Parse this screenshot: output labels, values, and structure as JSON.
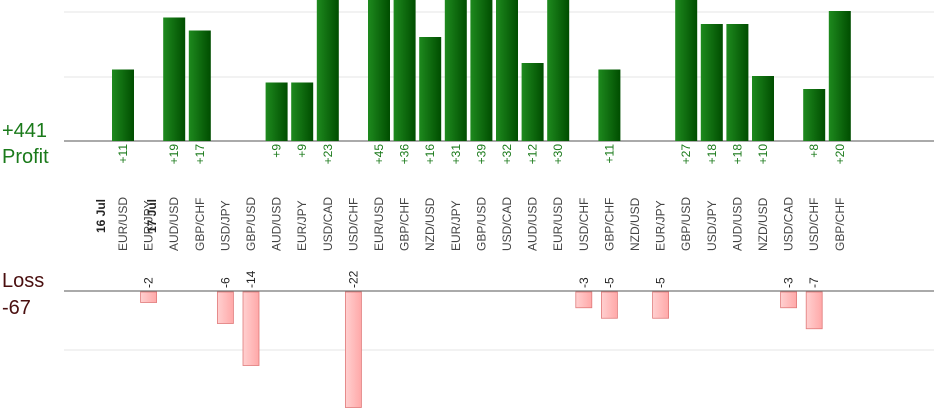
{
  "chart_data": {
    "type": "bar",
    "summary": {
      "profit_label": "Profit",
      "profit_total": "+441",
      "loss_label": "Loss",
      "loss_total": "-67"
    },
    "dates": [
      {
        "label": "16 Jul",
        "before_index": 0
      },
      {
        "label": "17 Jul",
        "before_index": 2
      }
    ],
    "categories": [
      "EUR/USD",
      "EUR/JPY",
      "AUD/USD",
      "GBP/CHF",
      "USD/JPY",
      "GBP/USD",
      "AUD/USD",
      "EUR/JPY",
      "USD/CAD",
      "USD/CHF",
      "EUR/USD",
      "GBP/CHF",
      "NZD/USD",
      "EUR/JPY",
      "GBP/USD",
      "USD/CAD",
      "AUD/USD",
      "EUR/USD",
      "USD/CHF",
      "GBP/CHF",
      "NZD/USD",
      "EUR/JPY",
      "GBP/USD",
      "USD/JPY",
      "AUD/USD",
      "NZD/USD",
      "USD/CAD",
      "USD/CHF",
      "GBP/CHF"
    ],
    "profit": [
      11,
      0,
      19,
      17,
      0,
      0,
      9,
      9,
      23,
      0,
      45,
      36,
      16,
      31,
      39,
      32,
      12,
      30,
      0,
      11,
      0,
      0,
      27,
      18,
      18,
      10,
      0,
      8,
      20
    ],
    "loss": [
      0,
      -2,
      0,
      0,
      -6,
      -14,
      0,
      0,
      0,
      -22,
      0,
      0,
      0,
      0,
      0,
      0,
      0,
      0,
      -3,
      -5,
      0,
      -5,
      0,
      0,
      0,
      0,
      -3,
      -7,
      0
    ],
    "profit_labels": [
      "+11",
      "",
      "+19",
      "+17",
      "",
      "",
      "+9",
      "+9",
      "+23",
      "",
      "+45",
      "+36",
      "+16",
      "+31",
      "+39",
      "+32",
      "+12",
      "+30",
      "",
      "+11",
      "",
      "",
      "+27",
      "+18",
      "+18",
      "+10",
      "",
      "+8",
      "+20"
    ],
    "loss_labels": [
      "",
      "-2",
      "",
      "",
      "-6",
      "-14",
      "",
      "",
      "",
      "-22",
      "",
      "",
      "",
      "",
      "",
      "",
      "",
      "",
      "-3",
      "-5",
      "",
      "-5",
      "",
      "",
      "",
      "",
      "-3",
      "-7",
      ""
    ],
    "profit_ylim": [
      0,
      22
    ],
    "loss_ylim": [
      -20,
      0
    ],
    "grid": true,
    "colors": {
      "profit_bar_light": "#1e8a1e",
      "profit_bar_dark": "#004d00",
      "loss_bar": "#ffb3b3",
      "loss_bar_edge": "#e07a7a",
      "grid": "#e6e6e6",
      "axis": "#555555"
    }
  }
}
